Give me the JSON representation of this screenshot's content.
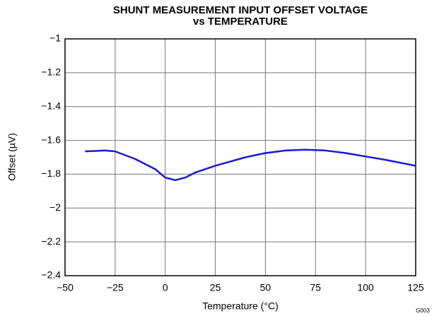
{
  "chart_data": {
    "type": "line",
    "title": [
      "SHUNT MEASUREMENT INPUT OFFSET VOLTAGE",
      "vs TEMPERATURE"
    ],
    "x_label": "Temperature (°C)",
    "y_label": "Offset (µV)",
    "annotation": "G003",
    "x": [
      -40,
      -30,
      -25,
      -15,
      -5,
      0,
      5,
      10,
      15,
      25,
      40,
      50,
      60,
      70,
      80,
      90,
      100,
      110,
      125
    ],
    "series": [
      {
        "name": "Offset",
        "color": "#1a1ad4",
        "values": [
          -1.665,
          -1.66,
          -1.665,
          -1.71,
          -1.77,
          -1.82,
          -1.835,
          -1.82,
          -1.79,
          -1.75,
          -1.7,
          -1.675,
          -1.66,
          -1.655,
          -1.66,
          -1.675,
          -1.695,
          -1.715,
          -1.75
        ]
      }
    ],
    "xlim": [
      -50,
      125
    ],
    "xticks": [
      {
        "value": -50,
        "label": "−50"
      },
      {
        "value": -25,
        "label": "−25"
      },
      0,
      25,
      50,
      75,
      100,
      125
    ],
    "ylim": [
      -2.4,
      -1
    ],
    "yticks": [
      {
        "value": -2.4,
        "label": "−2.4"
      },
      {
        "value": -2.2,
        "label": "−2.2"
      },
      {
        "value": -2,
        "label": "−2"
      },
      {
        "value": -1.8,
        "label": "−1.8"
      },
      {
        "value": -1.6,
        "label": "−1.6"
      },
      {
        "value": -1.4,
        "label": "−1.4"
      },
      {
        "value": -1.2,
        "label": "−1.2"
      },
      {
        "value": -1,
        "label": "−1"
      }
    ],
    "grid": true
  }
}
